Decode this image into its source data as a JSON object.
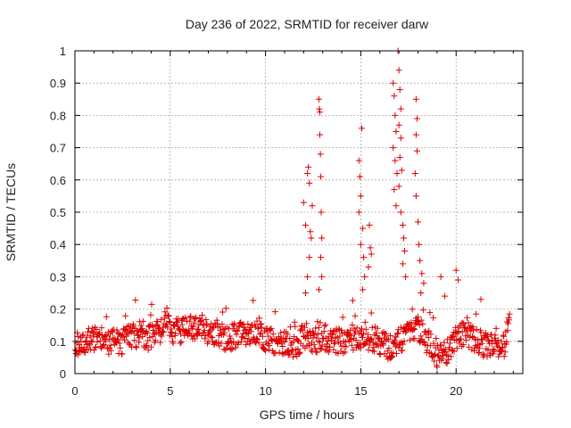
{
  "chart_data": {
    "type": "scatter",
    "title": "Day 236 of 2022, SRMTID for receiver darw",
    "xlabel": "GPS time / hours",
    "ylabel": "SRMTID / TECUs",
    "xlim": [
      0,
      23.5
    ],
    "ylim": [
      0,
      1
    ],
    "x_ticks": [
      0,
      5,
      10,
      15,
      20
    ],
    "y_ticks": [
      0,
      0.1,
      0.2,
      0.3,
      0.4,
      0.5,
      0.6,
      0.7,
      0.8,
      0.9,
      1
    ],
    "grid": true,
    "marker": "+",
    "color": "#dd0000",
    "baseline_profile": {
      "x": [
        0,
        0.5,
        1,
        1.5,
        2,
        2.5,
        3,
        3.5,
        4,
        4.5,
        4.8,
        5,
        5.5,
        6,
        6.5,
        7,
        7.5,
        8,
        8.5,
        9,
        9.5,
        10,
        10.5,
        11,
        11.5,
        12,
        12.5,
        13,
        13.5,
        14,
        14.5,
        15,
        15.5,
        16,
        16.5,
        17,
        17.5,
        18,
        18.5,
        19,
        19.5,
        20,
        20.5,
        21,
        21.5,
        22,
        22.5,
        22.8
      ],
      "y": [
        0.09,
        0.1,
        0.11,
        0.1,
        0.1,
        0.1,
        0.12,
        0.12,
        0.11,
        0.13,
        0.17,
        0.13,
        0.13,
        0.14,
        0.15,
        0.13,
        0.12,
        0.11,
        0.12,
        0.12,
        0.13,
        0.11,
        0.1,
        0.1,
        0.08,
        0.12,
        0.1,
        0.11,
        0.1,
        0.1,
        0.11,
        0.12,
        0.11,
        0.1,
        0.08,
        0.1,
        0.12,
        0.14,
        0.1,
        0.06,
        0.07,
        0.1,
        0.13,
        0.1,
        0.09,
        0.09,
        0.08,
        0.17
      ],
      "spread": 0.04
    },
    "peak_points": [
      {
        "x": 12.0,
        "y": 0.53
      },
      {
        "x": 12.1,
        "y": 0.46
      },
      {
        "x": 12.2,
        "y": 0.62
      },
      {
        "x": 12.25,
        "y": 0.64
      },
      {
        "x": 12.3,
        "y": 0.59
      },
      {
        "x": 12.35,
        "y": 0.44
      },
      {
        "x": 12.4,
        "y": 0.42
      },
      {
        "x": 12.45,
        "y": 0.52
      },
      {
        "x": 12.3,
        "y": 0.36
      },
      {
        "x": 12.2,
        "y": 0.3
      },
      {
        "x": 12.1,
        "y": 0.25
      },
      {
        "x": 12.8,
        "y": 0.85
      },
      {
        "x": 12.82,
        "y": 0.82
      },
      {
        "x": 12.85,
        "y": 0.81
      },
      {
        "x": 12.85,
        "y": 0.74
      },
      {
        "x": 12.88,
        "y": 0.68
      },
      {
        "x": 12.9,
        "y": 0.61
      },
      {
        "x": 12.92,
        "y": 0.5
      },
      {
        "x": 12.95,
        "y": 0.42
      },
      {
        "x": 12.9,
        "y": 0.36
      },
      {
        "x": 12.95,
        "y": 0.3
      },
      {
        "x": 12.8,
        "y": 0.26
      },
      {
        "x": 15.05,
        "y": 0.76
      },
      {
        "x": 14.9,
        "y": 0.66
      },
      {
        "x": 14.95,
        "y": 0.61
      },
      {
        "x": 15.0,
        "y": 0.55
      },
      {
        "x": 14.9,
        "y": 0.5
      },
      {
        "x": 15.1,
        "y": 0.45
      },
      {
        "x": 15.0,
        "y": 0.4
      },
      {
        "x": 15.15,
        "y": 0.36
      },
      {
        "x": 15.2,
        "y": 0.3
      },
      {
        "x": 15.1,
        "y": 0.26
      },
      {
        "x": 15.45,
        "y": 0.46
      },
      {
        "x": 15.5,
        "y": 0.39
      },
      {
        "x": 15.55,
        "y": 0.37
      },
      {
        "x": 15.4,
        "y": 0.33
      },
      {
        "x": 16.7,
        "y": 0.9
      },
      {
        "x": 16.75,
        "y": 0.86
      },
      {
        "x": 16.8,
        "y": 0.8
      },
      {
        "x": 16.85,
        "y": 0.75
      },
      {
        "x": 16.7,
        "y": 0.7
      },
      {
        "x": 16.8,
        "y": 0.66
      },
      {
        "x": 16.9,
        "y": 0.62
      },
      {
        "x": 16.75,
        "y": 0.57
      },
      {
        "x": 16.85,
        "y": 0.52
      },
      {
        "x": 16.95,
        "y": 1.0
      },
      {
        "x": 17.0,
        "y": 0.94
      },
      {
        "x": 17.05,
        "y": 0.88
      },
      {
        "x": 17.1,
        "y": 0.82
      },
      {
        "x": 17.0,
        "y": 0.77
      },
      {
        "x": 17.1,
        "y": 0.73
      },
      {
        "x": 17.05,
        "y": 0.67
      },
      {
        "x": 17.15,
        "y": 0.63
      },
      {
        "x": 17.0,
        "y": 0.58
      },
      {
        "x": 17.1,
        "y": 0.5
      },
      {
        "x": 17.2,
        "y": 0.46
      },
      {
        "x": 17.25,
        "y": 0.42
      },
      {
        "x": 17.3,
        "y": 0.38
      },
      {
        "x": 17.2,
        "y": 0.34
      },
      {
        "x": 17.35,
        "y": 0.3
      },
      {
        "x": 17.9,
        "y": 0.85
      },
      {
        "x": 17.95,
        "y": 0.79
      },
      {
        "x": 17.9,
        "y": 0.74
      },
      {
        "x": 17.95,
        "y": 0.69
      },
      {
        "x": 17.85,
        "y": 0.62
      },
      {
        "x": 17.9,
        "y": 0.55
      },
      {
        "x": 18.0,
        "y": 0.47
      },
      {
        "x": 18.05,
        "y": 0.4
      },
      {
        "x": 18.1,
        "y": 0.35
      },
      {
        "x": 18.2,
        "y": 0.31
      },
      {
        "x": 18.3,
        "y": 0.28
      },
      {
        "x": 18.15,
        "y": 0.25
      },
      {
        "x": 19.2,
        "y": 0.3
      },
      {
        "x": 19.4,
        "y": 0.24
      },
      {
        "x": 20.0,
        "y": 0.32
      },
      {
        "x": 20.1,
        "y": 0.29
      },
      {
        "x": 21.3,
        "y": 0.23
      }
    ]
  }
}
